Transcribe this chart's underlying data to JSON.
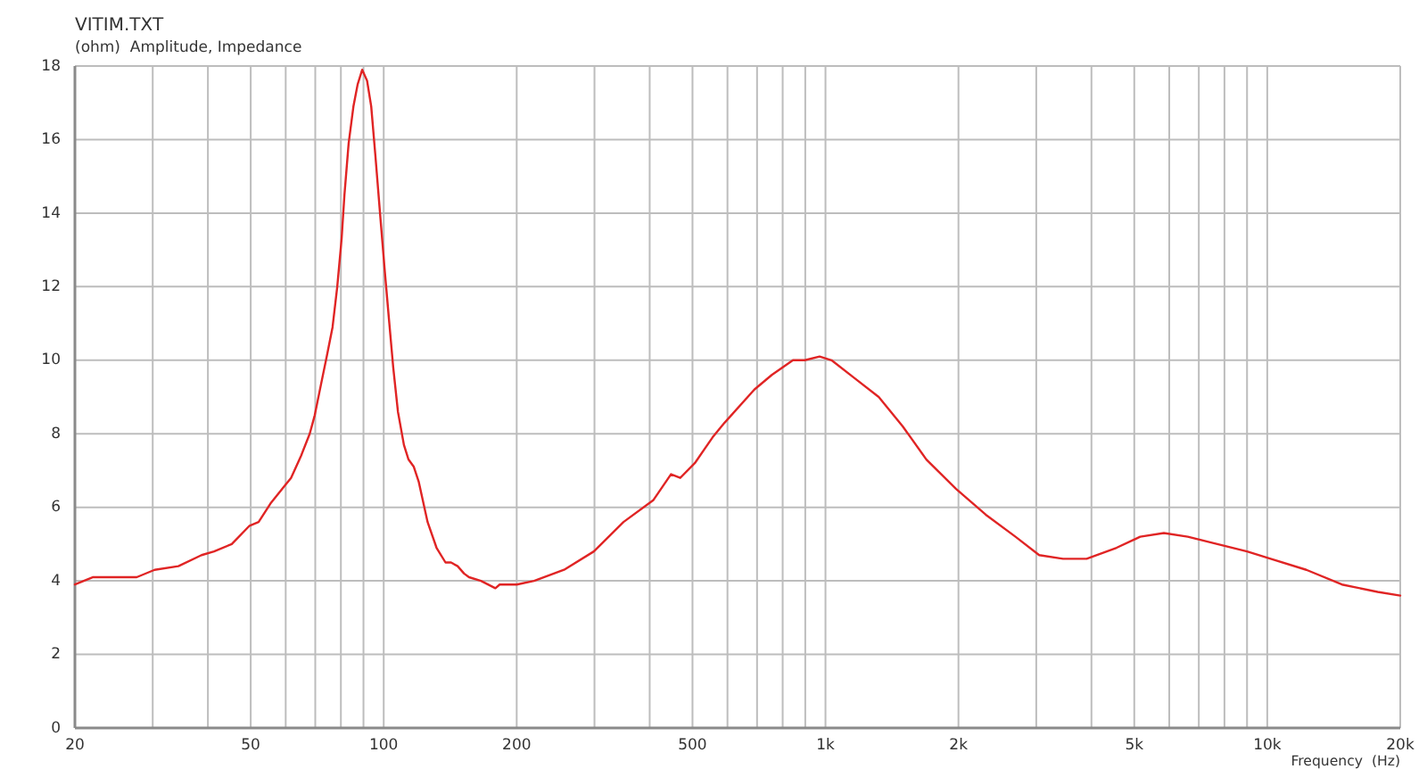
{
  "chart_data": {
    "type": "line",
    "title": "VITIM.TXT",
    "subtitle": "(ohm)  Amplitude, Impedance",
    "xlabel": "Frequency  (Hz)",
    "log": "x",
    "grid": true,
    "color": "#e02424",
    "xlim": [
      20,
      20000
    ],
    "ylim": [
      0,
      18
    ],
    "xticks": [
      20,
      {
        "value": 30,
        "label": null
      },
      {
        "value": 40,
        "label": null
      },
      50,
      {
        "value": 60,
        "label": null
      },
      {
        "value": 70,
        "label": null
      },
      {
        "value": 80,
        "label": null
      },
      {
        "value": 90,
        "label": null
      },
      100,
      200,
      {
        "value": 300,
        "label": null
      },
      {
        "value": 400,
        "label": null
      },
      500,
      {
        "value": 600,
        "label": null
      },
      {
        "value": 700,
        "label": null
      },
      {
        "value": 800,
        "label": null
      },
      {
        "value": 900,
        "label": null
      },
      {
        "value": 1000,
        "label": "1k"
      },
      {
        "value": 2000,
        "label": "2k"
      },
      {
        "value": 3000,
        "label": null
      },
      {
        "value": 4000,
        "label": null
      },
      {
        "value": 5000,
        "label": "5k"
      },
      {
        "value": 6000,
        "label": null
      },
      {
        "value": 7000,
        "label": null
      },
      {
        "value": 8000,
        "label": null
      },
      {
        "value": 9000,
        "label": null
      },
      {
        "value": 10000,
        "label": "10k"
      },
      {
        "value": 20000,
        "label": "20k"
      }
    ],
    "yticks": [
      0,
      2,
      4,
      6,
      8,
      10,
      12,
      14,
      16,
      18
    ],
    "x": [
      20,
      22,
      27.6,
      30.3,
      34.3,
      38.7,
      41.3,
      45.3,
      49.7,
      52.1,
      55.4,
      59.8,
      61.7,
      65,
      68,
      69.8,
      72,
      74.3,
      76.6,
      78.5,
      80.3,
      81.5,
      83.3,
      85.4,
      87.3,
      89.4,
      91.7,
      93.7,
      95.7,
      98.1,
      100.6,
      102.8,
      105.1,
      107.7,
      111.1,
      113.8,
      117,
      120,
      125.7,
      131.7,
      138,
      142,
      147,
      152,
      156,
      166,
      179,
      183,
      188,
      200,
      219,
      256,
      299,
      349,
      408,
      447,
      469,
      506,
      555,
      591,
      690,
      756,
      844,
      898,
      970,
      1032,
      1167,
      1320,
      1496,
      1692,
      1976,
      2306,
      2692,
      3046,
      3449,
      3900,
      4559,
      5157,
      5835,
      6608,
      7710,
      9000,
      10180,
      12260,
      14760,
      17780,
      20000
    ],
    "values": [
      3.9,
      4.1,
      4.1,
      4.3,
      4.4,
      4.7,
      4.8,
      5.0,
      5.5,
      5.6,
      6.1,
      6.6,
      6.8,
      7.4,
      8.0,
      8.5,
      9.3,
      10.1,
      10.9,
      12.0,
      13.3,
      14.5,
      15.9,
      16.9,
      17.5,
      17.9,
      17.6,
      16.9,
      15.6,
      14.0,
      12.4,
      11.1,
      9.8,
      8.6,
      7.7,
      7.3,
      7.1,
      6.7,
      5.6,
      4.9,
      4.5,
      4.5,
      4.4,
      4.2,
      4.1,
      4.0,
      3.8,
      3.9,
      3.9,
      3.9,
      4.0,
      4.3,
      4.8,
      5.6,
      6.2,
      6.9,
      6.8,
      7.2,
      7.9,
      8.3,
      9.2,
      9.6,
      10.0,
      10.0,
      10.1,
      10.0,
      9.5,
      9.0,
      8.2,
      7.3,
      6.5,
      5.8,
      5.2,
      4.7,
      4.6,
      4.6,
      4.9,
      5.2,
      5.3,
      5.2,
      5.0,
      4.8,
      4.6,
      4.3,
      3.9,
      3.7,
      3.6
    ]
  }
}
